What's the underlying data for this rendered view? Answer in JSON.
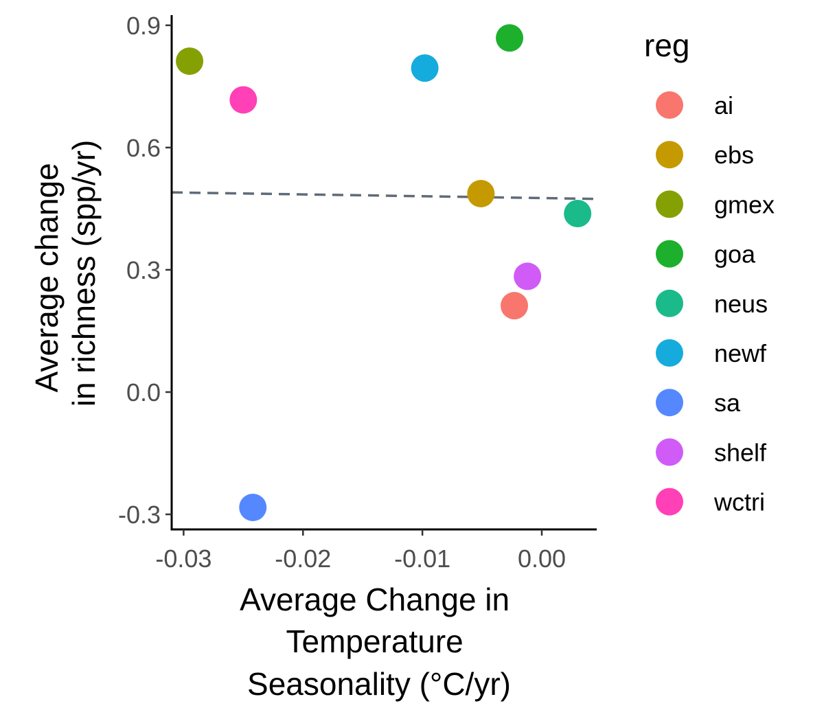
{
  "chart_data": {
    "type": "scatter",
    "xlabel_lines": [
      "Average Change in",
      "Temperature",
      "Seasonality (°C/yr)"
    ],
    "ylabel_lines": [
      "Average change",
      "in richness (spp/yr)"
    ],
    "xlim": [
      -0.031,
      0.0046
    ],
    "ylim": [
      -0.337,
      0.925
    ],
    "x_ticks": [
      {
        "value": -0.03,
        "label": "-0.03"
      },
      {
        "value": -0.02,
        "label": "-0.02"
      },
      {
        "value": -0.01,
        "label": "-0.01"
      },
      {
        "value": 0.0,
        "label": "0.00"
      }
    ],
    "y_ticks": [
      {
        "value": 0.9,
        "label": "0.9"
      },
      {
        "value": 0.6,
        "label": "0.6"
      },
      {
        "value": 0.3,
        "label": "0.3"
      },
      {
        "value": 0.0,
        "label": "0.0"
      },
      {
        "value": -0.3,
        "label": "-0.3"
      }
    ],
    "grid": false,
    "legend_position": "right",
    "legend_title": "reg",
    "trend_line": {
      "style": "dashed",
      "color": "#5f6b78",
      "x": [
        -0.031,
        0.0046
      ],
      "y": [
        0.49,
        0.474
      ]
    },
    "points": [
      {
        "reg": "ai",
        "x": -0.0023,
        "y": 0.212,
        "color": "#F8766D"
      },
      {
        "reg": "ebs",
        "x": -0.0051,
        "y": 0.487,
        "color": "#C49A00"
      },
      {
        "reg": "gmex",
        "x": -0.0295,
        "y": 0.812,
        "color": "#85A003"
      },
      {
        "reg": "goa",
        "x": -0.0027,
        "y": 0.869,
        "color": "#1CB02D"
      },
      {
        "reg": "neus",
        "x": 0.003,
        "y": 0.438,
        "color": "#1ABA8B"
      },
      {
        "reg": "newf",
        "x": -0.0098,
        "y": 0.795,
        "color": "#15ACDD"
      },
      {
        "reg": "sa",
        "x": -0.0242,
        "y": -0.283,
        "color": "#5588FF"
      },
      {
        "reg": "shelf",
        "x": -0.0012,
        "y": 0.284,
        "color": "#D05BF7"
      },
      {
        "reg": "wctri",
        "x": -0.025,
        "y": 0.717,
        "color": "#FF40B6"
      }
    ],
    "legend": [
      {
        "label": "ai",
        "color": "#F8766D"
      },
      {
        "label": "ebs",
        "color": "#C49A00"
      },
      {
        "label": "gmex",
        "color": "#85A003"
      },
      {
        "label": "goa",
        "color": "#1CB02D"
      },
      {
        "label": "neus",
        "color": "#1ABA8B"
      },
      {
        "label": "newf",
        "color": "#15ACDD"
      },
      {
        "label": "sa",
        "color": "#5588FF"
      },
      {
        "label": "shelf",
        "color": "#D05BF7"
      },
      {
        "label": "wctri",
        "color": "#FF40B6"
      }
    ]
  }
}
